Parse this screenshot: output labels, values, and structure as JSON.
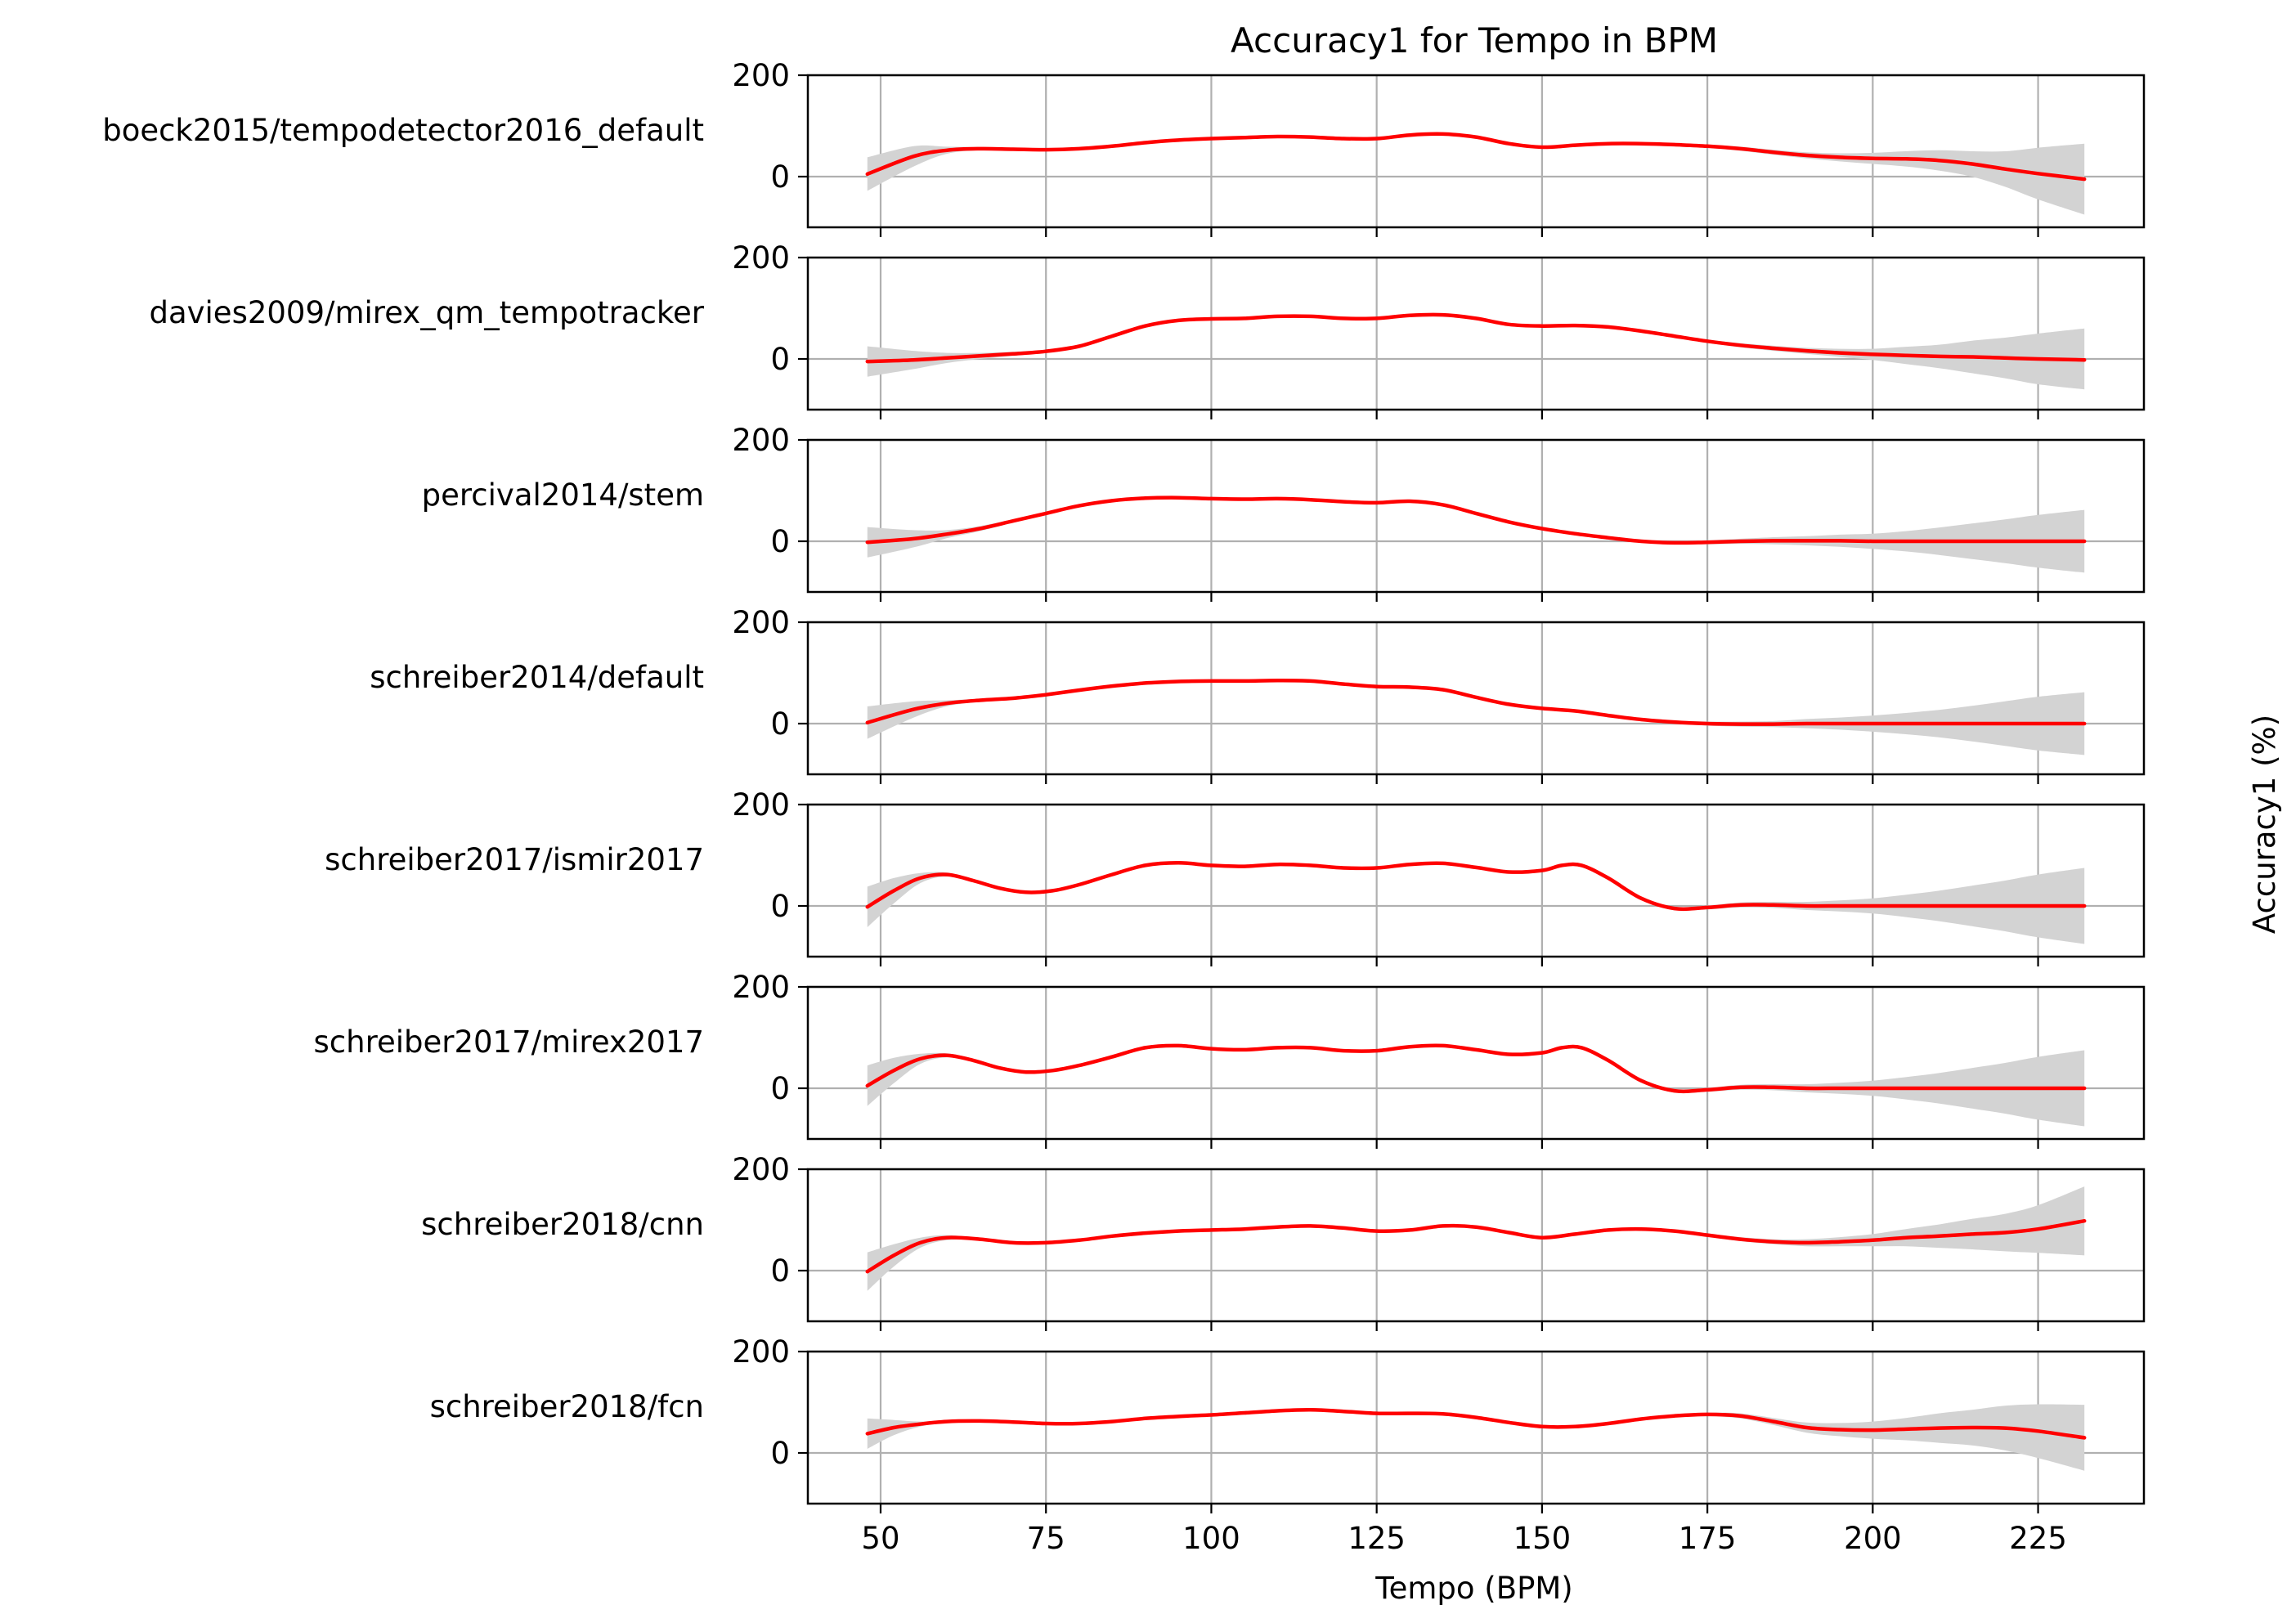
{
  "chart_data": {
    "type": "line",
    "title": "Accuracy1 for Tempo in BPM",
    "xlabel": "Tempo (BPM)",
    "ylabel": "Accuracy1 (%)",
    "xlim": [
      39,
      241
    ],
    "ylim": [
      -100,
      200
    ],
    "xticks": [
      50,
      75,
      100,
      125,
      150,
      175,
      200,
      225
    ],
    "yticks": [
      0,
      200
    ],
    "grid": true,
    "band_color": "#d3d3d3",
    "line_color": "#ff0000",
    "series": [
      {
        "name": "boeck2015/tempodetector2016_default",
        "x": [
          48,
          55,
          60,
          65,
          70,
          75,
          80,
          85,
          90,
          95,
          100,
          105,
          110,
          115,
          120,
          125,
          130,
          135,
          140,
          145,
          150,
          155,
          160,
          165,
          170,
          175,
          180,
          185,
          190,
          195,
          200,
          205,
          210,
          215,
          220,
          225,
          232
        ],
        "y": [
          5,
          40,
          52,
          55,
          54,
          53,
          55,
          60,
          67,
          72,
          75,
          77,
          79,
          78,
          75,
          75,
          82,
          84,
          78,
          65,
          58,
          62,
          65,
          65,
          63,
          60,
          55,
          48,
          42,
          38,
          36,
          35,
          32,
          25,
          15,
          6,
          -5
        ],
        "lower": [
          -28,
          20,
          45,
          52,
          52,
          52,
          54,
          59,
          66,
          71,
          74,
          76,
          78,
          77,
          74,
          74,
          80,
          82,
          76,
          63,
          56,
          60,
          63,
          63,
          61,
          57,
          51,
          43,
          36,
          30,
          25,
          20,
          12,
          0,
          -20,
          -45,
          -75
        ],
        "upper": [
          38,
          60,
          59,
          58,
          56,
          54,
          56,
          61,
          68,
          73,
          76,
          78,
          80,
          79,
          76,
          76,
          84,
          86,
          80,
          67,
          60,
          64,
          67,
          67,
          65,
          63,
          59,
          53,
          48,
          46,
          47,
          50,
          52,
          50,
          50,
          57,
          65
        ]
      },
      {
        "name": "davies2009/mirex_qm_tempotracker",
        "x": [
          48,
          55,
          60,
          65,
          70,
          75,
          80,
          85,
          90,
          95,
          100,
          105,
          110,
          115,
          120,
          125,
          130,
          135,
          140,
          145,
          150,
          155,
          160,
          165,
          170,
          175,
          180,
          185,
          190,
          195,
          200,
          205,
          210,
          215,
          220,
          225,
          232
        ],
        "y": [
          -5,
          -2,
          2,
          6,
          10,
          15,
          25,
          45,
          65,
          76,
          79,
          80,
          84,
          84,
          80,
          80,
          86,
          87,
          80,
          68,
          65,
          66,
          63,
          55,
          45,
          35,
          27,
          21,
          16,
          12,
          9,
          7,
          5,
          4,
          2,
          0,
          -2
        ],
        "lower": [
          -35,
          -20,
          -8,
          0,
          6,
          12,
          23,
          43,
          63,
          74,
          77,
          78,
          82,
          82,
          78,
          78,
          84,
          85,
          78,
          66,
          63,
          64,
          61,
          53,
          43,
          32,
          23,
          16,
          10,
          4,
          -2,
          -10,
          -18,
          -28,
          -38,
          -50,
          -60
        ],
        "upper": [
          25,
          16,
          12,
          12,
          14,
          18,
          27,
          47,
          67,
          78,
          81,
          82,
          86,
          86,
          82,
          82,
          88,
          89,
          82,
          70,
          67,
          68,
          65,
          57,
          47,
          38,
          31,
          26,
          22,
          20,
          20,
          24,
          28,
          36,
          42,
          50,
          60
        ]
      },
      {
        "name": "percival2014/stem",
        "x": [
          48,
          55,
          60,
          65,
          70,
          75,
          80,
          85,
          90,
          95,
          100,
          105,
          110,
          115,
          120,
          125,
          130,
          135,
          140,
          145,
          150,
          155,
          160,
          165,
          170,
          175,
          180,
          185,
          190,
          195,
          200,
          205,
          210,
          215,
          220,
          225,
          232
        ],
        "y": [
          -2,
          5,
          14,
          25,
          40,
          55,
          70,
          80,
          85,
          86,
          84,
          83,
          84,
          82,
          78,
          76,
          79,
          72,
          55,
          38,
          25,
          15,
          7,
          0,
          -3,
          -2,
          0,
          1,
          1,
          1,
          0,
          0,
          0,
          0,
          0,
          0,
          0
        ],
        "lower": [
          -32,
          -12,
          6,
          20,
          37,
          53,
          68,
          78,
          83,
          84,
          82,
          81,
          82,
          80,
          76,
          74,
          77,
          70,
          53,
          36,
          23,
          13,
          5,
          -2,
          -6,
          -6,
          -5,
          -6,
          -8,
          -11,
          -15,
          -20,
          -27,
          -35,
          -43,
          -52,
          -62
        ],
        "upper": [
          28,
          22,
          22,
          30,
          43,
          57,
          72,
          82,
          87,
          88,
          86,
          85,
          86,
          84,
          80,
          78,
          81,
          74,
          57,
          40,
          27,
          17,
          9,
          2,
          0,
          2,
          5,
          8,
          10,
          13,
          15,
          20,
          27,
          35,
          43,
          52,
          62
        ]
      },
      {
        "name": "schreiber2014/default",
        "x": [
          48,
          55,
          60,
          65,
          70,
          75,
          80,
          85,
          90,
          95,
          100,
          105,
          110,
          115,
          120,
          125,
          130,
          135,
          140,
          145,
          150,
          155,
          160,
          165,
          170,
          175,
          180,
          185,
          190,
          195,
          200,
          205,
          210,
          215,
          220,
          225,
          232
        ],
        "y": [
          2,
          28,
          40,
          46,
          50,
          57,
          66,
          74,
          80,
          83,
          84,
          84,
          85,
          84,
          78,
          73,
          72,
          67,
          52,
          38,
          30,
          25,
          16,
          8,
          3,
          0,
          -1,
          -1,
          0,
          0,
          0,
          0,
          0,
          0,
          0,
          0,
          0
        ],
        "lower": [
          -30,
          12,
          34,
          43,
          48,
          55,
          64,
          72,
          78,
          81,
          82,
          82,
          83,
          82,
          76,
          71,
          70,
          65,
          50,
          36,
          28,
          23,
          14,
          6,
          0,
          -4,
          -6,
          -7,
          -9,
          -12,
          -16,
          -21,
          -27,
          -35,
          -44,
          -53,
          -62
        ],
        "upper": [
          34,
          44,
          46,
          49,
          52,
          59,
          68,
          76,
          82,
          85,
          86,
          86,
          87,
          86,
          80,
          75,
          74,
          69,
          54,
          40,
          32,
          27,
          18,
          10,
          6,
          4,
          4,
          5,
          9,
          12,
          16,
          21,
          27,
          35,
          44,
          53,
          62
        ]
      },
      {
        "name": "schreiber2017/ismir2017",
        "x": [
          48,
          52,
          56,
          60,
          64,
          68,
          72,
          76,
          80,
          85,
          90,
          95,
          100,
          105,
          110,
          115,
          120,
          125,
          130,
          135,
          140,
          145,
          150,
          153,
          156,
          160,
          165,
          170,
          175,
          180,
          185,
          190,
          195,
          200,
          205,
          210,
          215,
          220,
          225,
          232
        ],
        "y": [
          -2,
          30,
          55,
          62,
          50,
          35,
          27,
          30,
          42,
          62,
          80,
          85,
          80,
          78,
          82,
          80,
          75,
          75,
          82,
          84,
          76,
          67,
          70,
          80,
          80,
          55,
          15,
          -5,
          -3,
          2,
          2,
          0,
          0,
          0,
          0,
          0,
          0,
          0,
          0,
          0
        ],
        "lower": [
          -42,
          5,
          45,
          58,
          47,
          33,
          25,
          28,
          40,
          60,
          78,
          83,
          78,
          76,
          80,
          78,
          73,
          73,
          80,
          82,
          74,
          65,
          68,
          78,
          78,
          52,
          12,
          -8,
          -7,
          -3,
          -4,
          -8,
          -11,
          -15,
          -22,
          -30,
          -40,
          -50,
          -62,
          -75
        ],
        "upper": [
          38,
          55,
          65,
          66,
          53,
          37,
          29,
          32,
          44,
          64,
          82,
          87,
          82,
          80,
          84,
          82,
          77,
          77,
          84,
          86,
          78,
          69,
          72,
          82,
          82,
          58,
          18,
          -2,
          1,
          7,
          8,
          8,
          11,
          15,
          22,
          30,
          40,
          50,
          62,
          75
        ]
      },
      {
        "name": "schreiber2017/mirex2017",
        "x": [
          48,
          52,
          56,
          60,
          64,
          68,
          72,
          76,
          80,
          85,
          90,
          95,
          100,
          105,
          110,
          115,
          120,
          125,
          130,
          135,
          140,
          145,
          150,
          153,
          156,
          160,
          165,
          170,
          175,
          180,
          185,
          190,
          195,
          200,
          205,
          210,
          215,
          220,
          225,
          232
        ],
        "y": [
          5,
          35,
          58,
          65,
          55,
          40,
          32,
          35,
          45,
          62,
          80,
          84,
          78,
          76,
          80,
          80,
          74,
          74,
          82,
          84,
          76,
          67,
          70,
          80,
          80,
          55,
          15,
          -5,
          -3,
          2,
          2,
          0,
          0,
          0,
          0,
          0,
          0,
          0,
          0,
          0
        ],
        "lower": [
          -35,
          10,
          48,
          61,
          52,
          38,
          30,
          33,
          43,
          60,
          78,
          82,
          76,
          74,
          78,
          78,
          72,
          72,
          80,
          82,
          74,
          65,
          68,
          78,
          78,
          52,
          12,
          -8,
          -7,
          -3,
          -4,
          -8,
          -11,
          -15,
          -22,
          -30,
          -40,
          -50,
          -62,
          -75
        ],
        "upper": [
          45,
          60,
          68,
          69,
          58,
          42,
          34,
          37,
          47,
          64,
          82,
          86,
          80,
          78,
          82,
          82,
          76,
          76,
          84,
          86,
          78,
          69,
          72,
          82,
          82,
          58,
          18,
          -2,
          1,
          7,
          8,
          8,
          11,
          15,
          22,
          30,
          40,
          50,
          62,
          75
        ]
      },
      {
        "name": "schreiber2018/cnn",
        "x": [
          48,
          52,
          56,
          60,
          65,
          70,
          75,
          80,
          85,
          90,
          95,
          100,
          105,
          110,
          115,
          120,
          125,
          130,
          135,
          140,
          145,
          150,
          155,
          160,
          165,
          170,
          175,
          180,
          185,
          190,
          195,
          200,
          205,
          210,
          215,
          220,
          225,
          232
        ],
        "y": [
          -2,
          30,
          55,
          65,
          62,
          55,
          55,
          60,
          68,
          74,
          78,
          80,
          82,
          86,
          88,
          84,
          78,
          80,
          88,
          86,
          75,
          65,
          72,
          80,
          82,
          78,
          70,
          62,
          57,
          55,
          57,
          60,
          65,
          68,
          72,
          75,
          82,
          98
        ],
        "lower": [
          -40,
          8,
          45,
          60,
          60,
          53,
          53,
          58,
          66,
          72,
          76,
          78,
          80,
          84,
          86,
          82,
          76,
          78,
          86,
          84,
          73,
          63,
          70,
          78,
          80,
          76,
          67,
          58,
          52,
          48,
          48,
          48,
          48,
          45,
          42,
          38,
          35,
          30
        ],
        "upper": [
          36,
          52,
          65,
          70,
          64,
          57,
          57,
          62,
          70,
          76,
          80,
          82,
          84,
          88,
          90,
          86,
          80,
          82,
          90,
          88,
          77,
          67,
          74,
          82,
          84,
          80,
          73,
          66,
          62,
          62,
          66,
          72,
          82,
          91,
          102,
          112,
          129,
          166
        ]
      },
      {
        "name": "schreiber2018/fcn",
        "x": [
          48,
          52,
          56,
          60,
          65,
          70,
          75,
          80,
          85,
          90,
          95,
          100,
          105,
          110,
          115,
          120,
          125,
          130,
          135,
          140,
          145,
          150,
          155,
          160,
          165,
          170,
          175,
          180,
          185,
          190,
          195,
          200,
          205,
          210,
          215,
          220,
          225,
          232
        ],
        "y": [
          38,
          50,
          57,
          62,
          63,
          61,
          58,
          58,
          62,
          68,
          72,
          75,
          79,
          83,
          85,
          82,
          78,
          78,
          77,
          70,
          60,
          52,
          52,
          58,
          67,
          73,
          76,
          73,
          62,
          50,
          46,
          45,
          47,
          49,
          50,
          49,
          43,
          30
        ],
        "lower": [
          8,
          35,
          52,
          60,
          62,
          60,
          57,
          57,
          61,
          67,
          71,
          74,
          78,
          82,
          84,
          81,
          77,
          77,
          76,
          69,
          59,
          51,
          51,
          57,
          66,
          71,
          73,
          68,
          55,
          40,
          33,
          28,
          25,
          20,
          15,
          5,
          -10,
          -35
        ],
        "upper": [
          68,
          65,
          62,
          64,
          64,
          62,
          59,
          59,
          63,
          69,
          73,
          76,
          80,
          84,
          86,
          83,
          79,
          79,
          78,
          71,
          61,
          53,
          53,
          59,
          68,
          75,
          79,
          78,
          69,
          60,
          59,
          62,
          69,
          78,
          85,
          93,
          96,
          95
        ]
      }
    ]
  }
}
